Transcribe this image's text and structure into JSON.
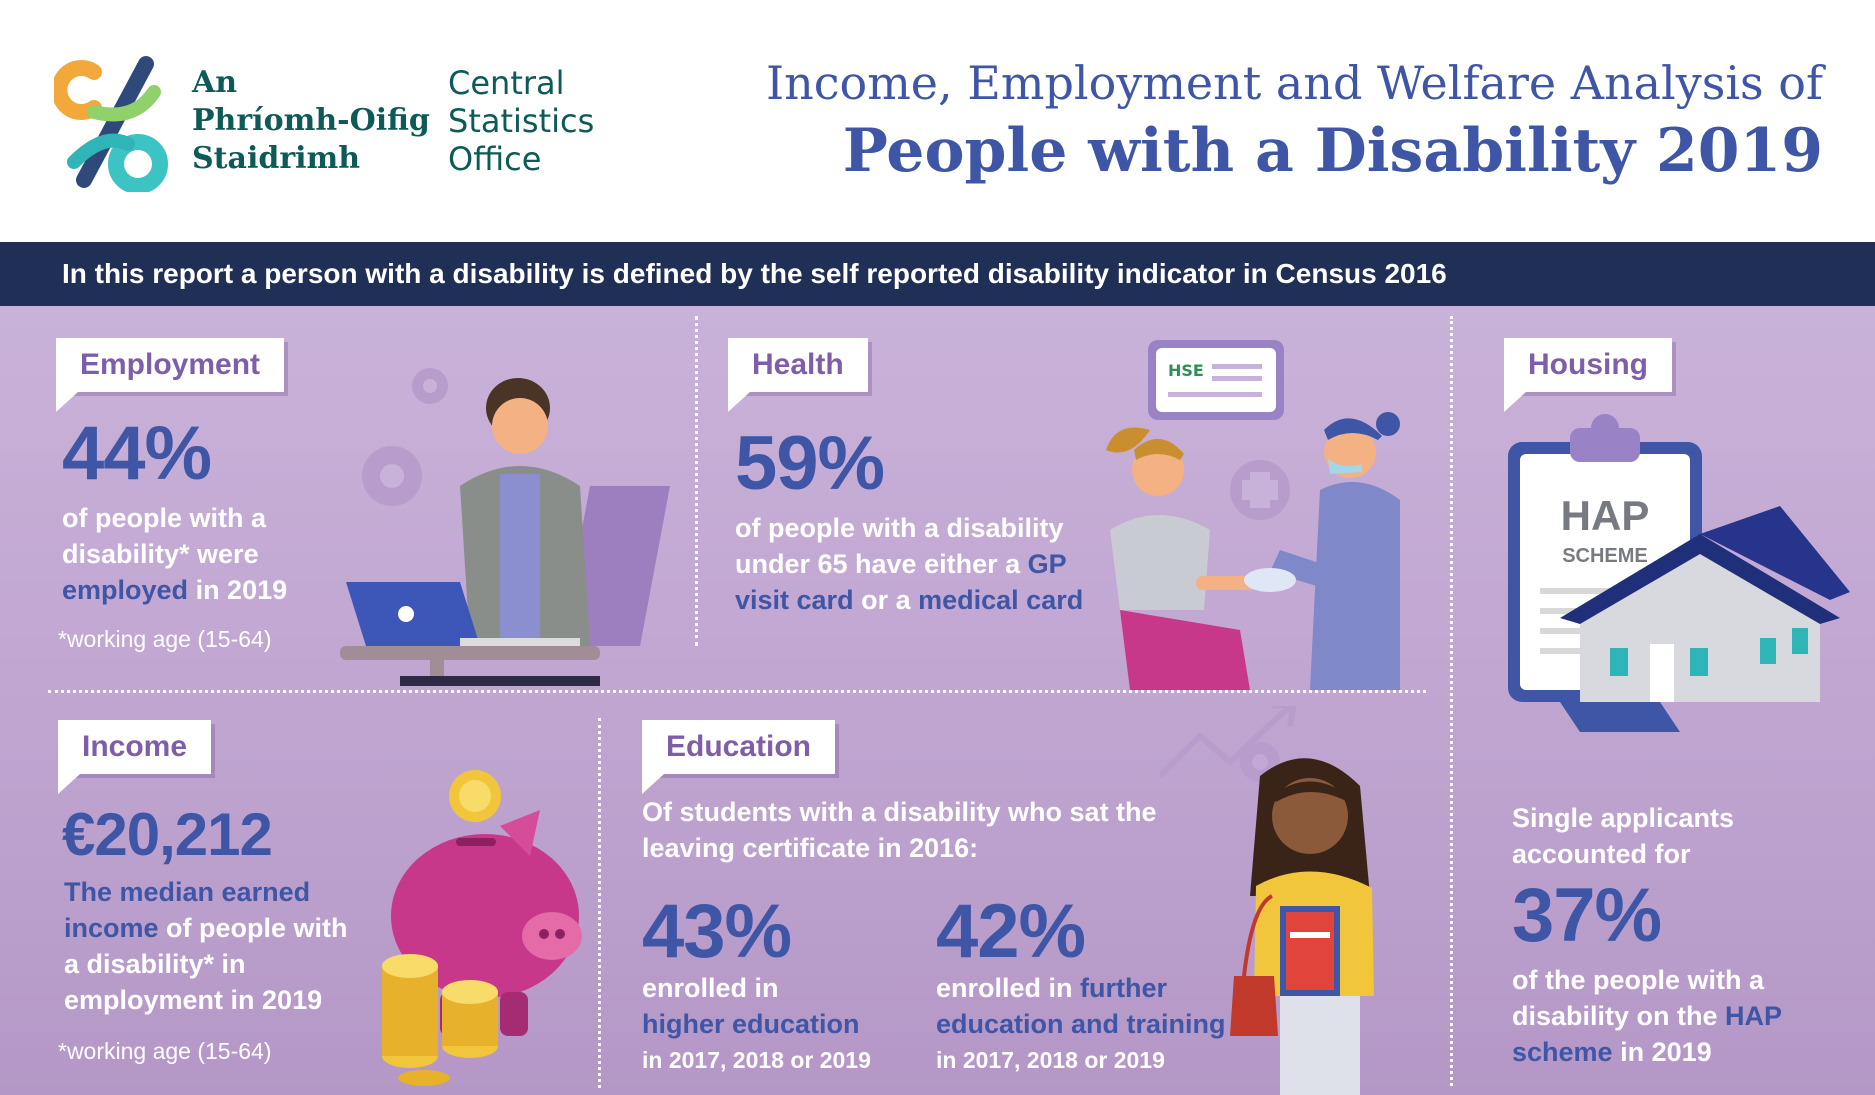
{
  "header": {
    "logo_irish": [
      "An",
      "Phríomh-Oifig",
      "Staidrimh"
    ],
    "logo_english": [
      "Central",
      "Statistics",
      "Office"
    ],
    "title_line1": "Income, Employment and Welfare Analysis of",
    "title_line2": "People with a Disability 2019"
  },
  "banner": "In this report a person with a disability is defined by the self reported disability indicator in Census 2016",
  "employment": {
    "heading": "Employment",
    "stat": "44%",
    "text_a": "of people with a disability* were",
    "text_hl": "employed",
    "text_b": "in 2019",
    "note": "*working age (15-64)"
  },
  "health": {
    "heading": "Health",
    "stat": "59%",
    "text_a": "of people with a disability under 65 have either a",
    "text_hl1": "GP visit card",
    "text_b": "or a",
    "text_hl2": "medical card",
    "card_logo": "HSE"
  },
  "housing": {
    "heading": "Housing",
    "hap_title": "HAP",
    "hap_sub": "SCHEME",
    "text_a": "Single applicants accounted for",
    "stat": "37%",
    "text_b": "of the people with a disability on the",
    "text_hl": "HAP scheme",
    "text_c": "in 2019"
  },
  "income": {
    "heading": "Income",
    "stat": "€20,212",
    "text_hl": "The median earned income",
    "text_a": "of people with a disability* in employment in 2019",
    "note": "*working age (15-64)"
  },
  "education": {
    "heading": "Education",
    "intro": "Of students with a disability who sat the leaving certificate in 2016:",
    "stat1": "43%",
    "stat1_a": "enrolled in",
    "stat1_hl": "higher education",
    "stat1_b": "in 2017, 2018 or 2019",
    "stat2": "42%",
    "stat2_a": "enrolled in",
    "stat2_hl": "further education and training",
    "stat2_b": "in 2017, 2018 or 2019"
  },
  "colors": {
    "title_blue": "#3e56a5",
    "banner_navy": "#1f2f55",
    "tag_purple": "#7e5ea8",
    "logo_teal": "#0d5a57",
    "background_purple": "#c2a8d4"
  },
  "icons": [
    "csso-logo-icon",
    "gear-icon",
    "laptop-worker-icon",
    "hse-card-icon",
    "medical-cross-icon",
    "patient-icon",
    "nurse-icon",
    "clipboard-icon",
    "house-icon",
    "piggy-bank-icon",
    "coins-icon",
    "trend-arrow-icon",
    "student-icon"
  ]
}
